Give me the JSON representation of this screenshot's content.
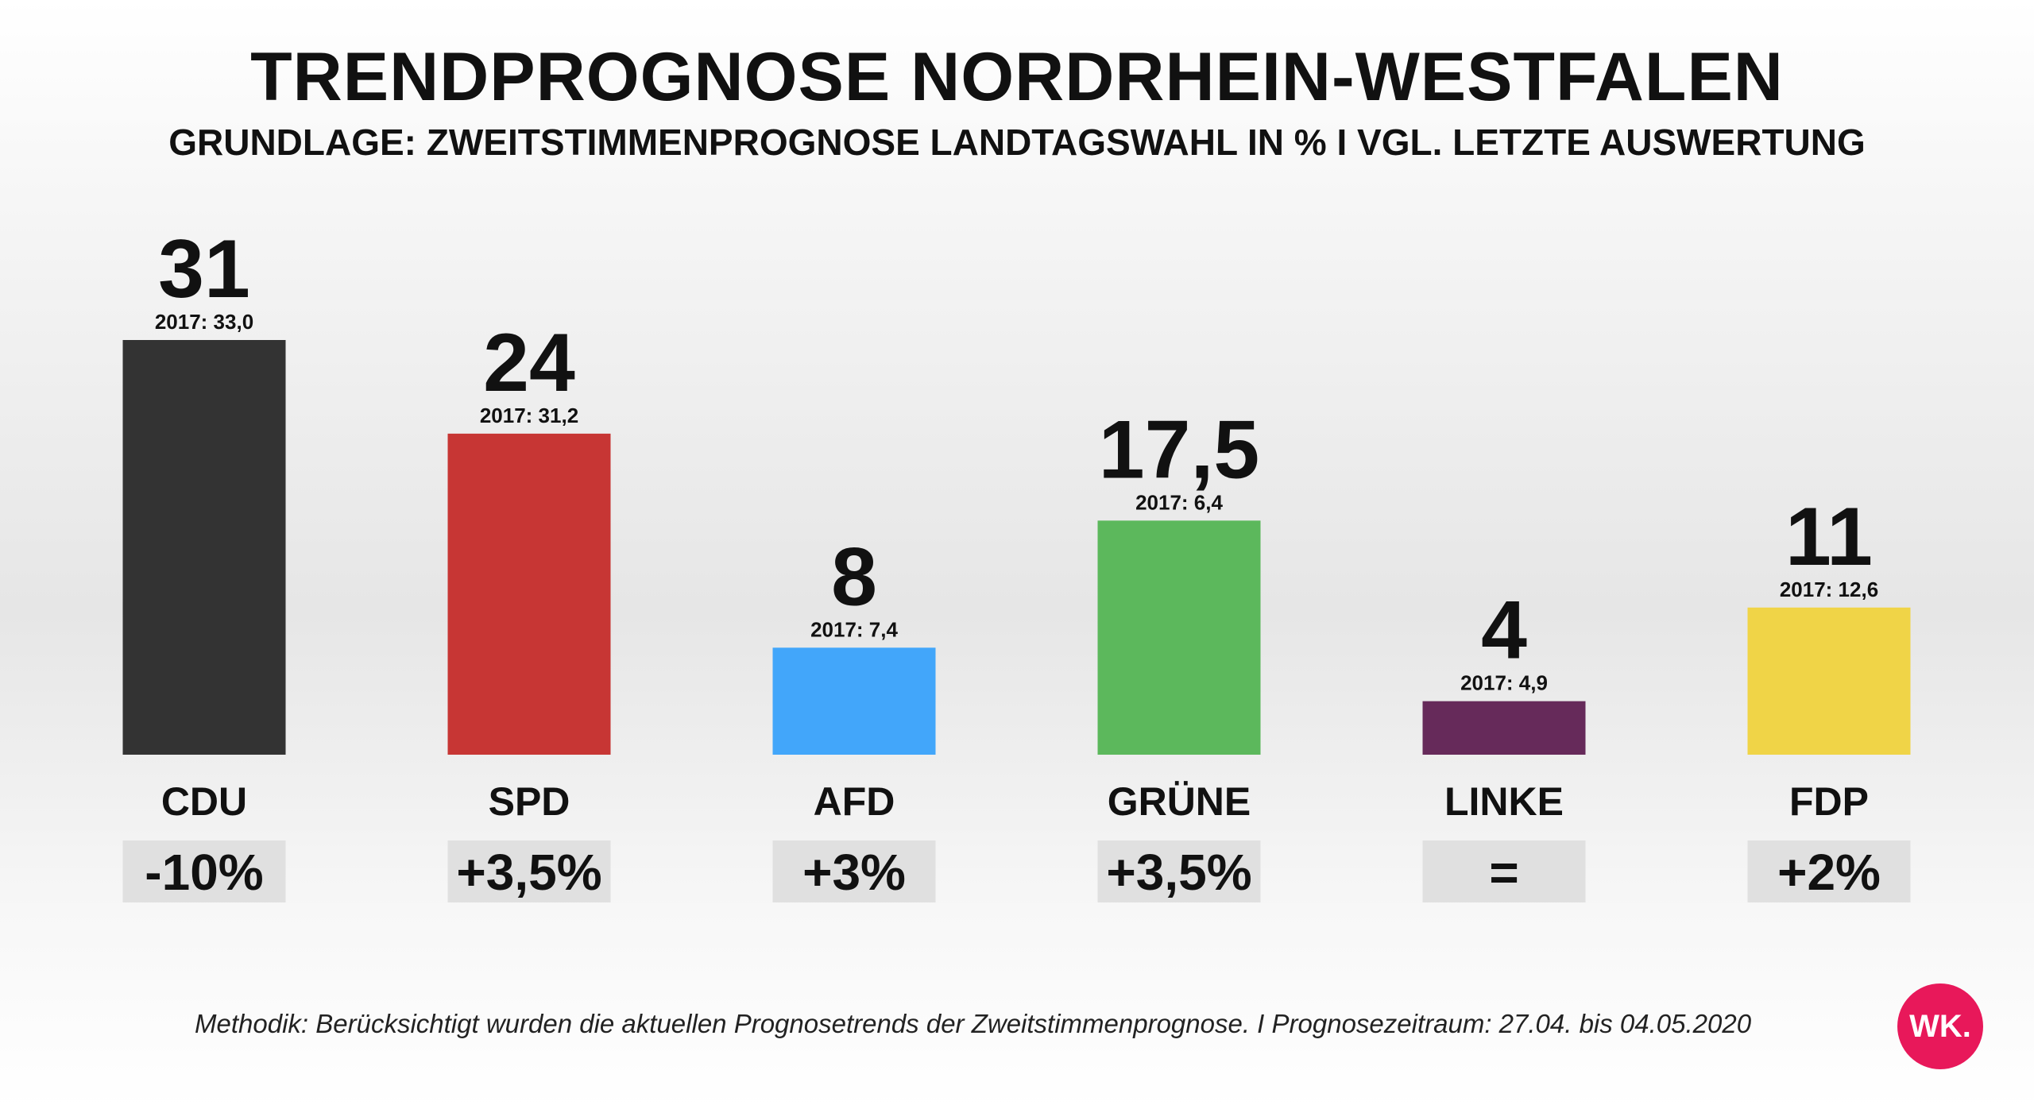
{
  "title": "TRENDPROGNOSE NORDRHEIN-WESTFALEN",
  "subtitle": "GRUNDLAGE: ZWEITSTIMMENPROGNOSE LANDTAGSWAHL IN % I VGL. LETZTE AUSWERTUNG",
  "methodology": "Methodik: Berücksichtigt wurden die aktuellen Prognosetrends der Zweitstimmenprognose. I Prognosezeitraum: 27.04. bis 04.05.2020",
  "logo_text": "WK.",
  "logo_color": "#e8185a",
  "change_box_color": "#e0e0e0",
  "chart_data": {
    "type": "bar",
    "categories": [
      "CDU",
      "SPD",
      "AFD",
      "GRÜNE",
      "LINKE",
      "FDP"
    ],
    "values": [
      31,
      24,
      8,
      17.5,
      4,
      11
    ],
    "value_labels": [
      "31",
      "24",
      "8",
      "17,5",
      "4",
      "11"
    ],
    "previous_labels": [
      "2017: 33,0",
      "2017: 31,2",
      "2017: 7,4",
      "2017: 6,4",
      "2017: 4,9",
      "2017: 12,6"
    ],
    "previous_values": [
      33.0,
      31.2,
      7.4,
      6.4,
      4.9,
      12.6
    ],
    "changes": [
      "-10%",
      "+3,5%",
      "+3%",
      "+3,5%",
      "=",
      "+2%"
    ],
    "colors": [
      "#333333",
      "#c73634",
      "#42a6fa",
      "#5cb85c",
      "#662a5a",
      "#f0d447"
    ],
    "ylim": [
      0,
      31
    ]
  }
}
